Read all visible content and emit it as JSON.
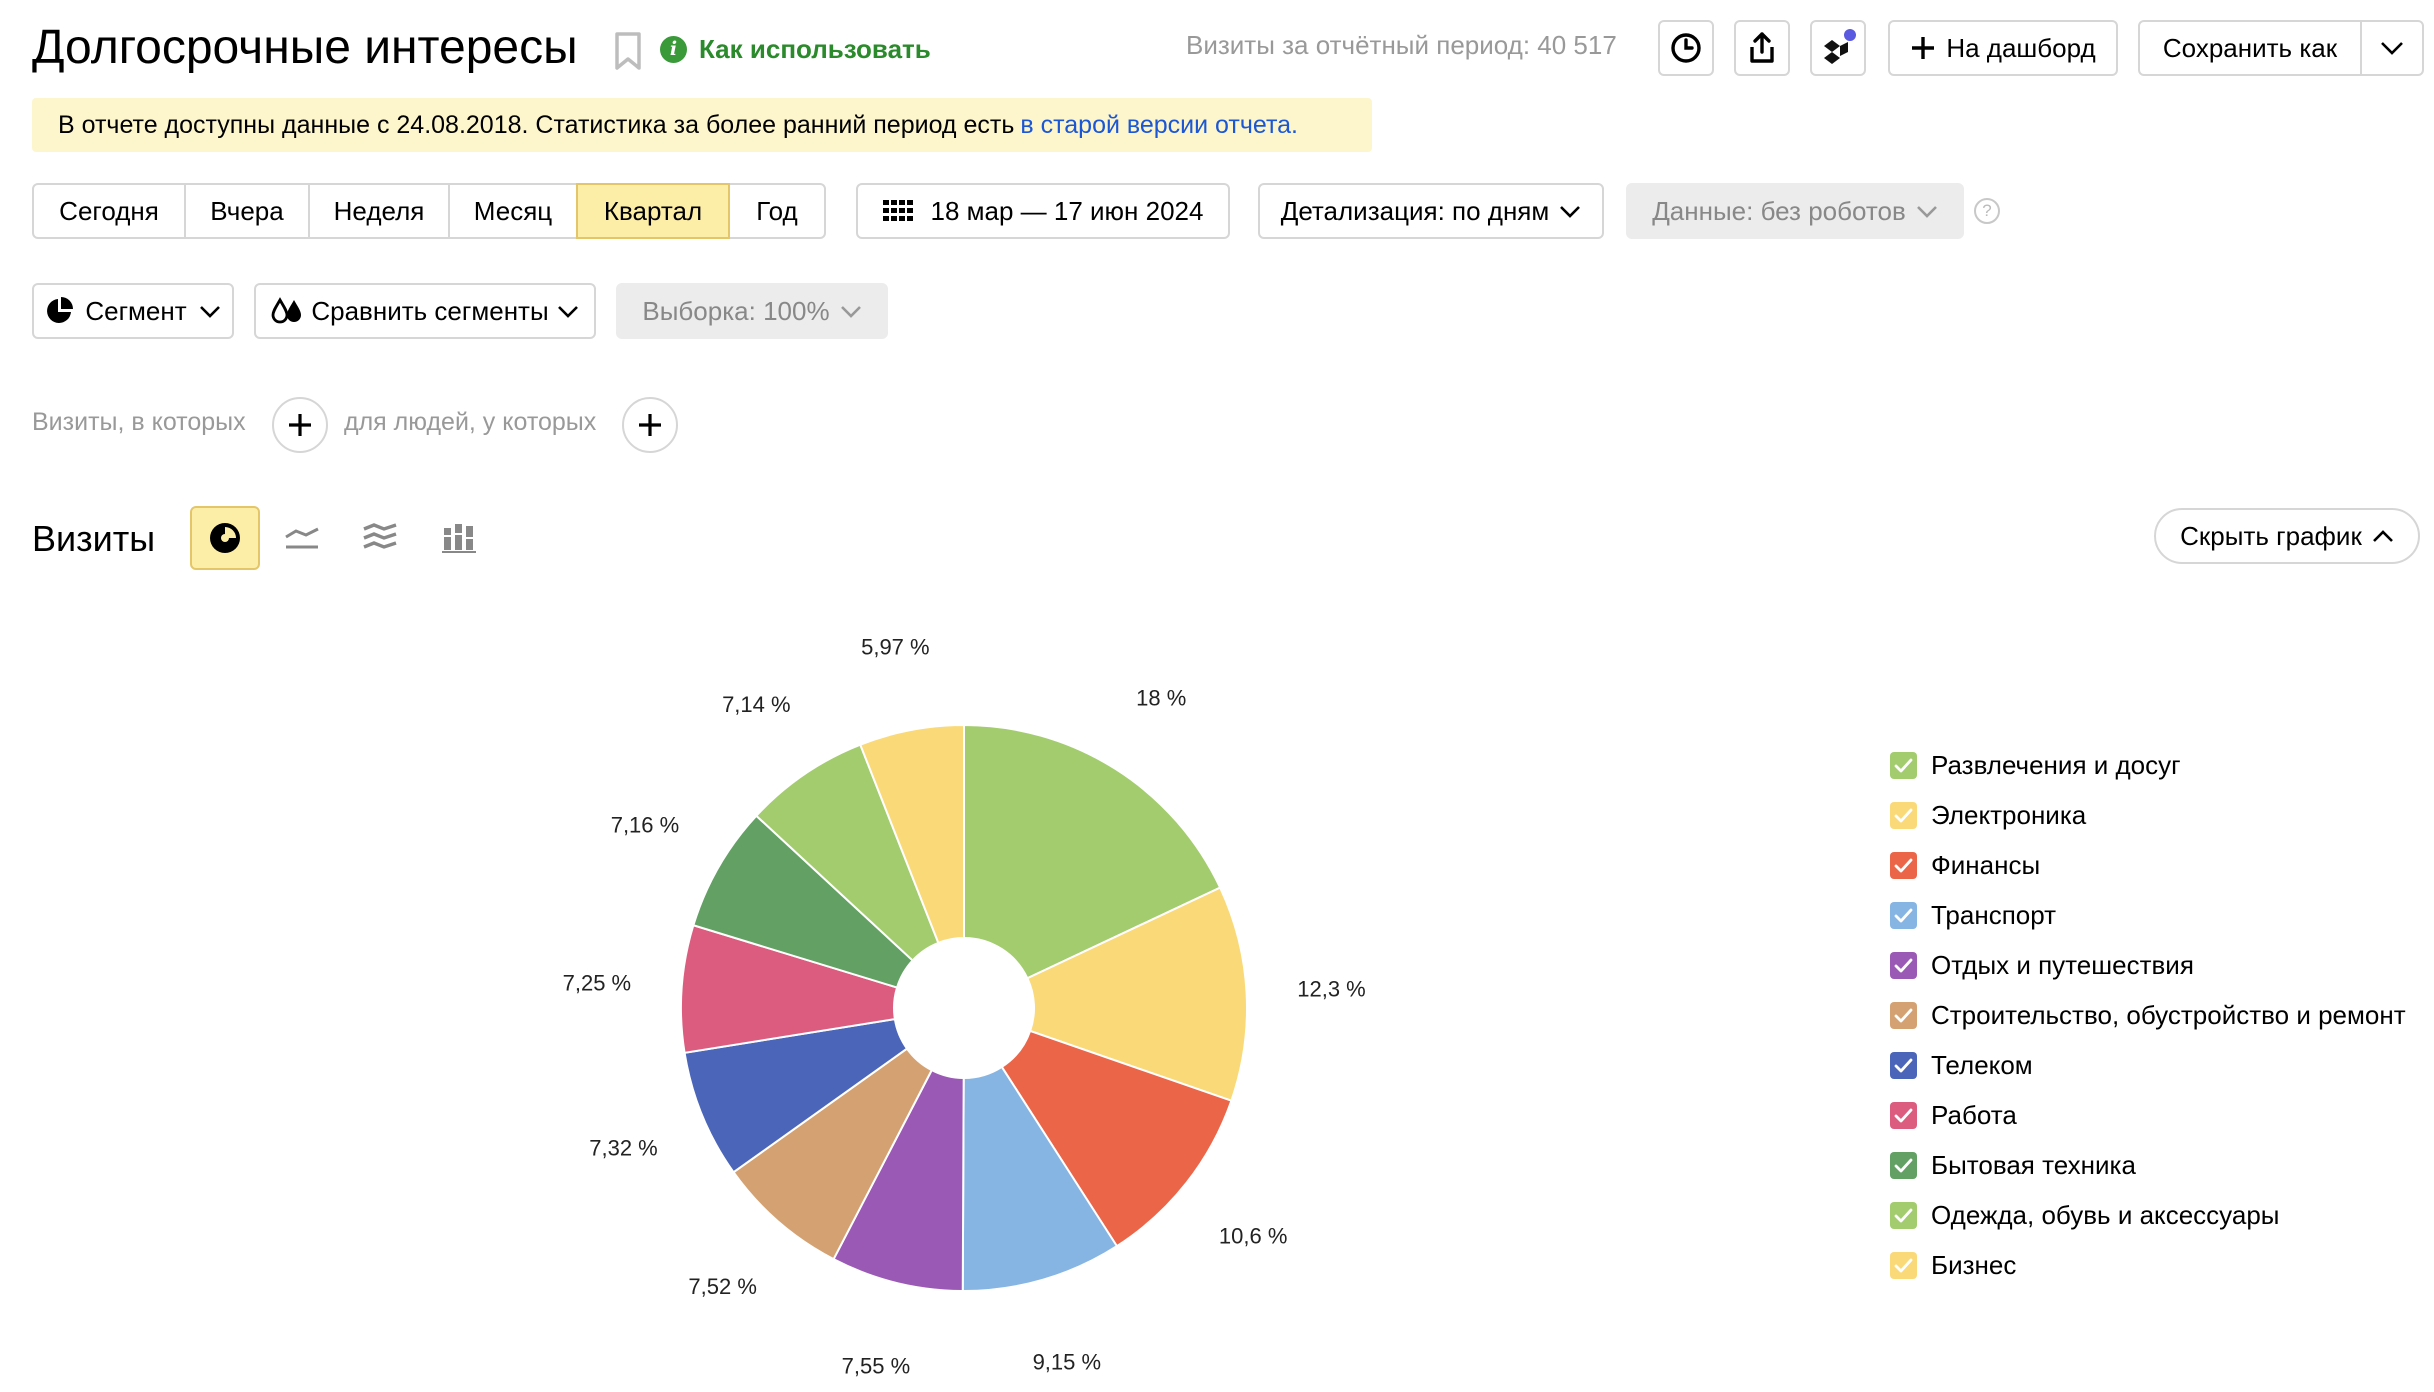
{
  "header": {
    "title": "Долгосрочные интересы",
    "how_to_use": "Как использовать",
    "visits_total": "Визиты за отчётный период: 40 517",
    "add_dashboard": "На дашборд",
    "save_as": "Сохранить как"
  },
  "notice": {
    "text": "В отчете доступны данные с 24.08.2018. Статистика за более ранний период есть",
    "link": "в старой версии отчета."
  },
  "periods": [
    {
      "label": "Сегодня",
      "active": false
    },
    {
      "label": "Вчера",
      "active": false
    },
    {
      "label": "Неделя",
      "active": false
    },
    {
      "label": "Месяц",
      "active": false
    },
    {
      "label": "Квартал",
      "active": true
    },
    {
      "label": "Год",
      "active": false
    }
  ],
  "date_range": "18 мар — 17 июн 2024",
  "detail": "Детализация: по дням",
  "data_filter": "Данные: без роботов",
  "segment": "Сегмент",
  "compare_segments": "Сравнить сегменты",
  "sample": "Выборка: 100%",
  "filters": {
    "visits_where": "Визиты, в которых",
    "people_where": "для людей, у которых"
  },
  "chart_header": {
    "title": "Визиты",
    "hide_chart": "Скрыть график"
  },
  "chart_data": {
    "type": "pie",
    "donut": true,
    "categories": [
      "Развлечения и досуг",
      "Электроника",
      "Финансы",
      "Транспорт",
      "Отдых и путешествия",
      "Строительство, обустройство и ремонт",
      "Телеком",
      "Работа",
      "Бытовая техника",
      "Одежда, обувь и аксессуары",
      "Бизнес"
    ],
    "values": [
      18,
      12.3,
      10.6,
      9.15,
      7.55,
      7.52,
      7.32,
      7.25,
      7.16,
      7.14,
      5.97
    ],
    "value_labels": [
      "18 %",
      "12,3 %",
      "10,6 %",
      "9,15 %",
      "7,55 %",
      "7,52 %",
      "7,32 %",
      "7,25 %",
      "7,16 %",
      "7,14 %",
      "5,97 %"
    ],
    "colors": [
      "#a3cc6e",
      "#fad979",
      "#eb6549",
      "#86b5e3",
      "#9b59b6",
      "#d4a272",
      "#4b65b8",
      "#db5c7e",
      "#62a063",
      "#a3cc6e",
      "#fad979"
    ],
    "legend_position": "right"
  },
  "icons": {
    "history": "clock-icon",
    "export": "export-icon",
    "assistant": "assistant-icon",
    "calendar": "calendar-icon",
    "segment": "pie-segment-icon",
    "compare": "drops-icon"
  }
}
